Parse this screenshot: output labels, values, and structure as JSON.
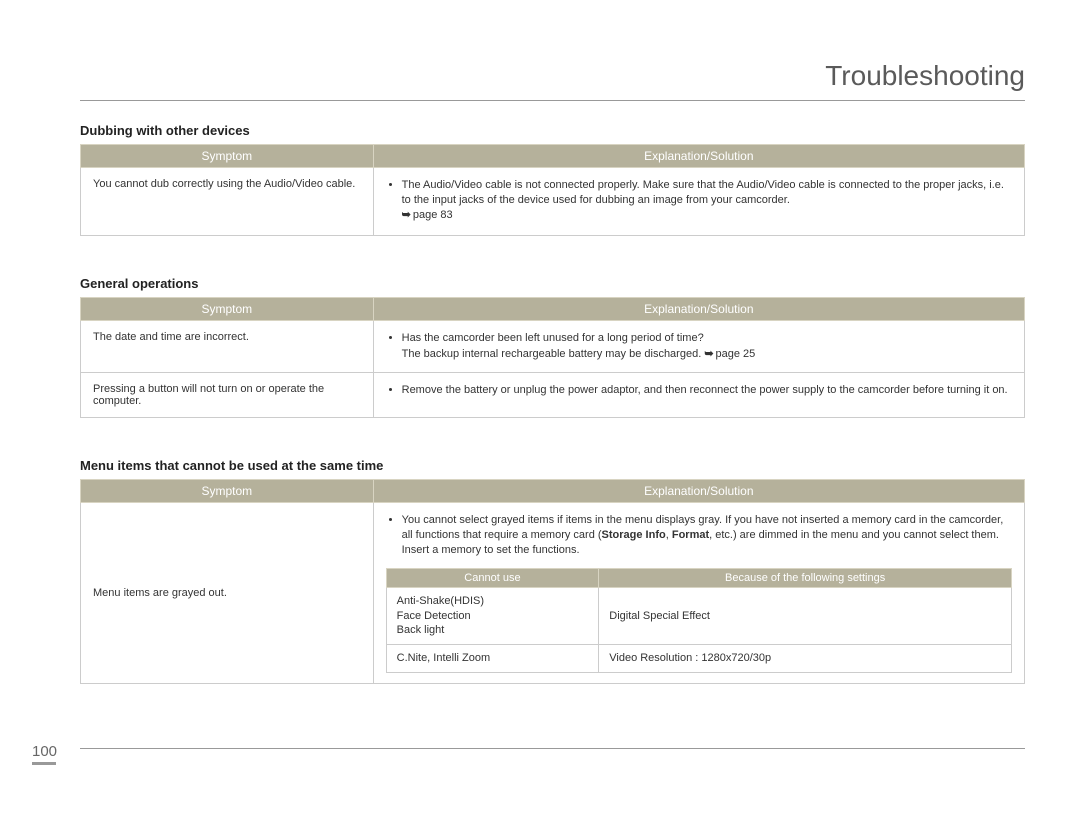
{
  "page": {
    "title": "Troubleshooting",
    "number": "100"
  },
  "colors": {
    "header_bg": "#b5b19b",
    "header_text": "#ffffff",
    "border": "#cccccc",
    "rule": "#999999",
    "body_text": "#333333",
    "title_text": "#5a5a5a"
  },
  "typography": {
    "title_fontsize": 28,
    "title_weight": 300,
    "section_fontsize": 13,
    "body_fontsize": 11
  },
  "layout": {
    "symptom_col_width_pct": 31
  },
  "sections": [
    {
      "title": "Dubbing with other devices",
      "headers": {
        "symptom": "Symptom",
        "solution": "Explanation/Solution"
      },
      "rows": [
        {
          "symptom": "You cannot dub correctly using the Audio/Video cable.",
          "bullets": [
            "The Audio/Video cable is not connected properly. Make sure that the Audio/Video cable is connected to the proper jacks, i.e. to the input jacks of the device used for dubbing an image from your camcorder. "
          ],
          "ref": "page 83"
        }
      ]
    },
    {
      "title": "General operations",
      "headers": {
        "symptom": "Symptom",
        "solution": "Explanation/Solution"
      },
      "rows": [
        {
          "symptom": "The date and time are incorrect.",
          "bullets": [
            "Has the camcorder been left unused for a long period of time?"
          ],
          "extra_line": "The backup internal rechargeable battery may be discharged. ",
          "ref": "page 25"
        },
        {
          "symptom": "Pressing a button will not turn on or operate the computer.",
          "bullets": [
            "Remove the battery or unplug the power adaptor, and then reconnect the power supply to the camcorder before turning it on."
          ]
        }
      ]
    },
    {
      "title": "Menu items that cannot be used at the same time",
      "headers": {
        "symptom": "Symptom",
        "solution": "Explanation/Solution"
      },
      "rows": [
        {
          "symptom": "Menu items are grayed out.",
          "bullets": [
            "You cannot select grayed items if items in the menu displays gray. If you have not inserted a memory card in the camcorder, all functions that require a memory card (Storage Info, Format, etc.) are dimmed in the menu and you cannot select them.  Insert a memory to set the functions."
          ],
          "bold_spans": [
            "Storage Info",
            "Format"
          ],
          "inner_table": {
            "headers": {
              "col1": "Cannot use",
              "col2": "Because of the following settings"
            },
            "rows": [
              {
                "col1": "Anti-Shake(HDIS)\nFace Detection\nBack light",
                "col2": "Digital Special Effect"
              },
              {
                "col1": "C.Nite, Intelli Zoom",
                "col2": "Video Resolution : 1280x720/30p"
              }
            ]
          }
        }
      ]
    }
  ]
}
